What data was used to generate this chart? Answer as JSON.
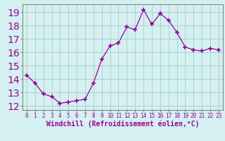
{
  "x": [
    0,
    1,
    2,
    3,
    4,
    5,
    6,
    7,
    8,
    9,
    10,
    11,
    12,
    13,
    14,
    15,
    16,
    17,
    18,
    19,
    20,
    21,
    22,
    23
  ],
  "y": [
    14.3,
    13.7,
    12.9,
    12.7,
    12.2,
    12.3,
    12.4,
    12.5,
    13.7,
    15.5,
    16.5,
    16.7,
    17.9,
    17.7,
    19.2,
    18.1,
    18.9,
    18.4,
    17.5,
    16.4,
    16.2,
    16.1,
    16.3,
    16.2
  ],
  "line_color": "#990099",
  "marker": "+",
  "marker_size": 4,
  "marker_linewidth": 1.2,
  "bg_color": "#d4f0f0",
  "grid_color": "#aacccc",
  "spine_color": "#888888",
  "ylabel_ticks": [
    12,
    13,
    14,
    15,
    16,
    17,
    18,
    19
  ],
  "ylim": [
    11.7,
    19.6
  ],
  "xlim": [
    -0.5,
    23.5
  ],
  "xlabel": "Windchill (Refroidissement éolien,°C)",
  "xlabel_color": "#990099",
  "tick_color": "#990099",
  "tick_fontsize": 5.5,
  "xlabel_fontsize": 7.0
}
